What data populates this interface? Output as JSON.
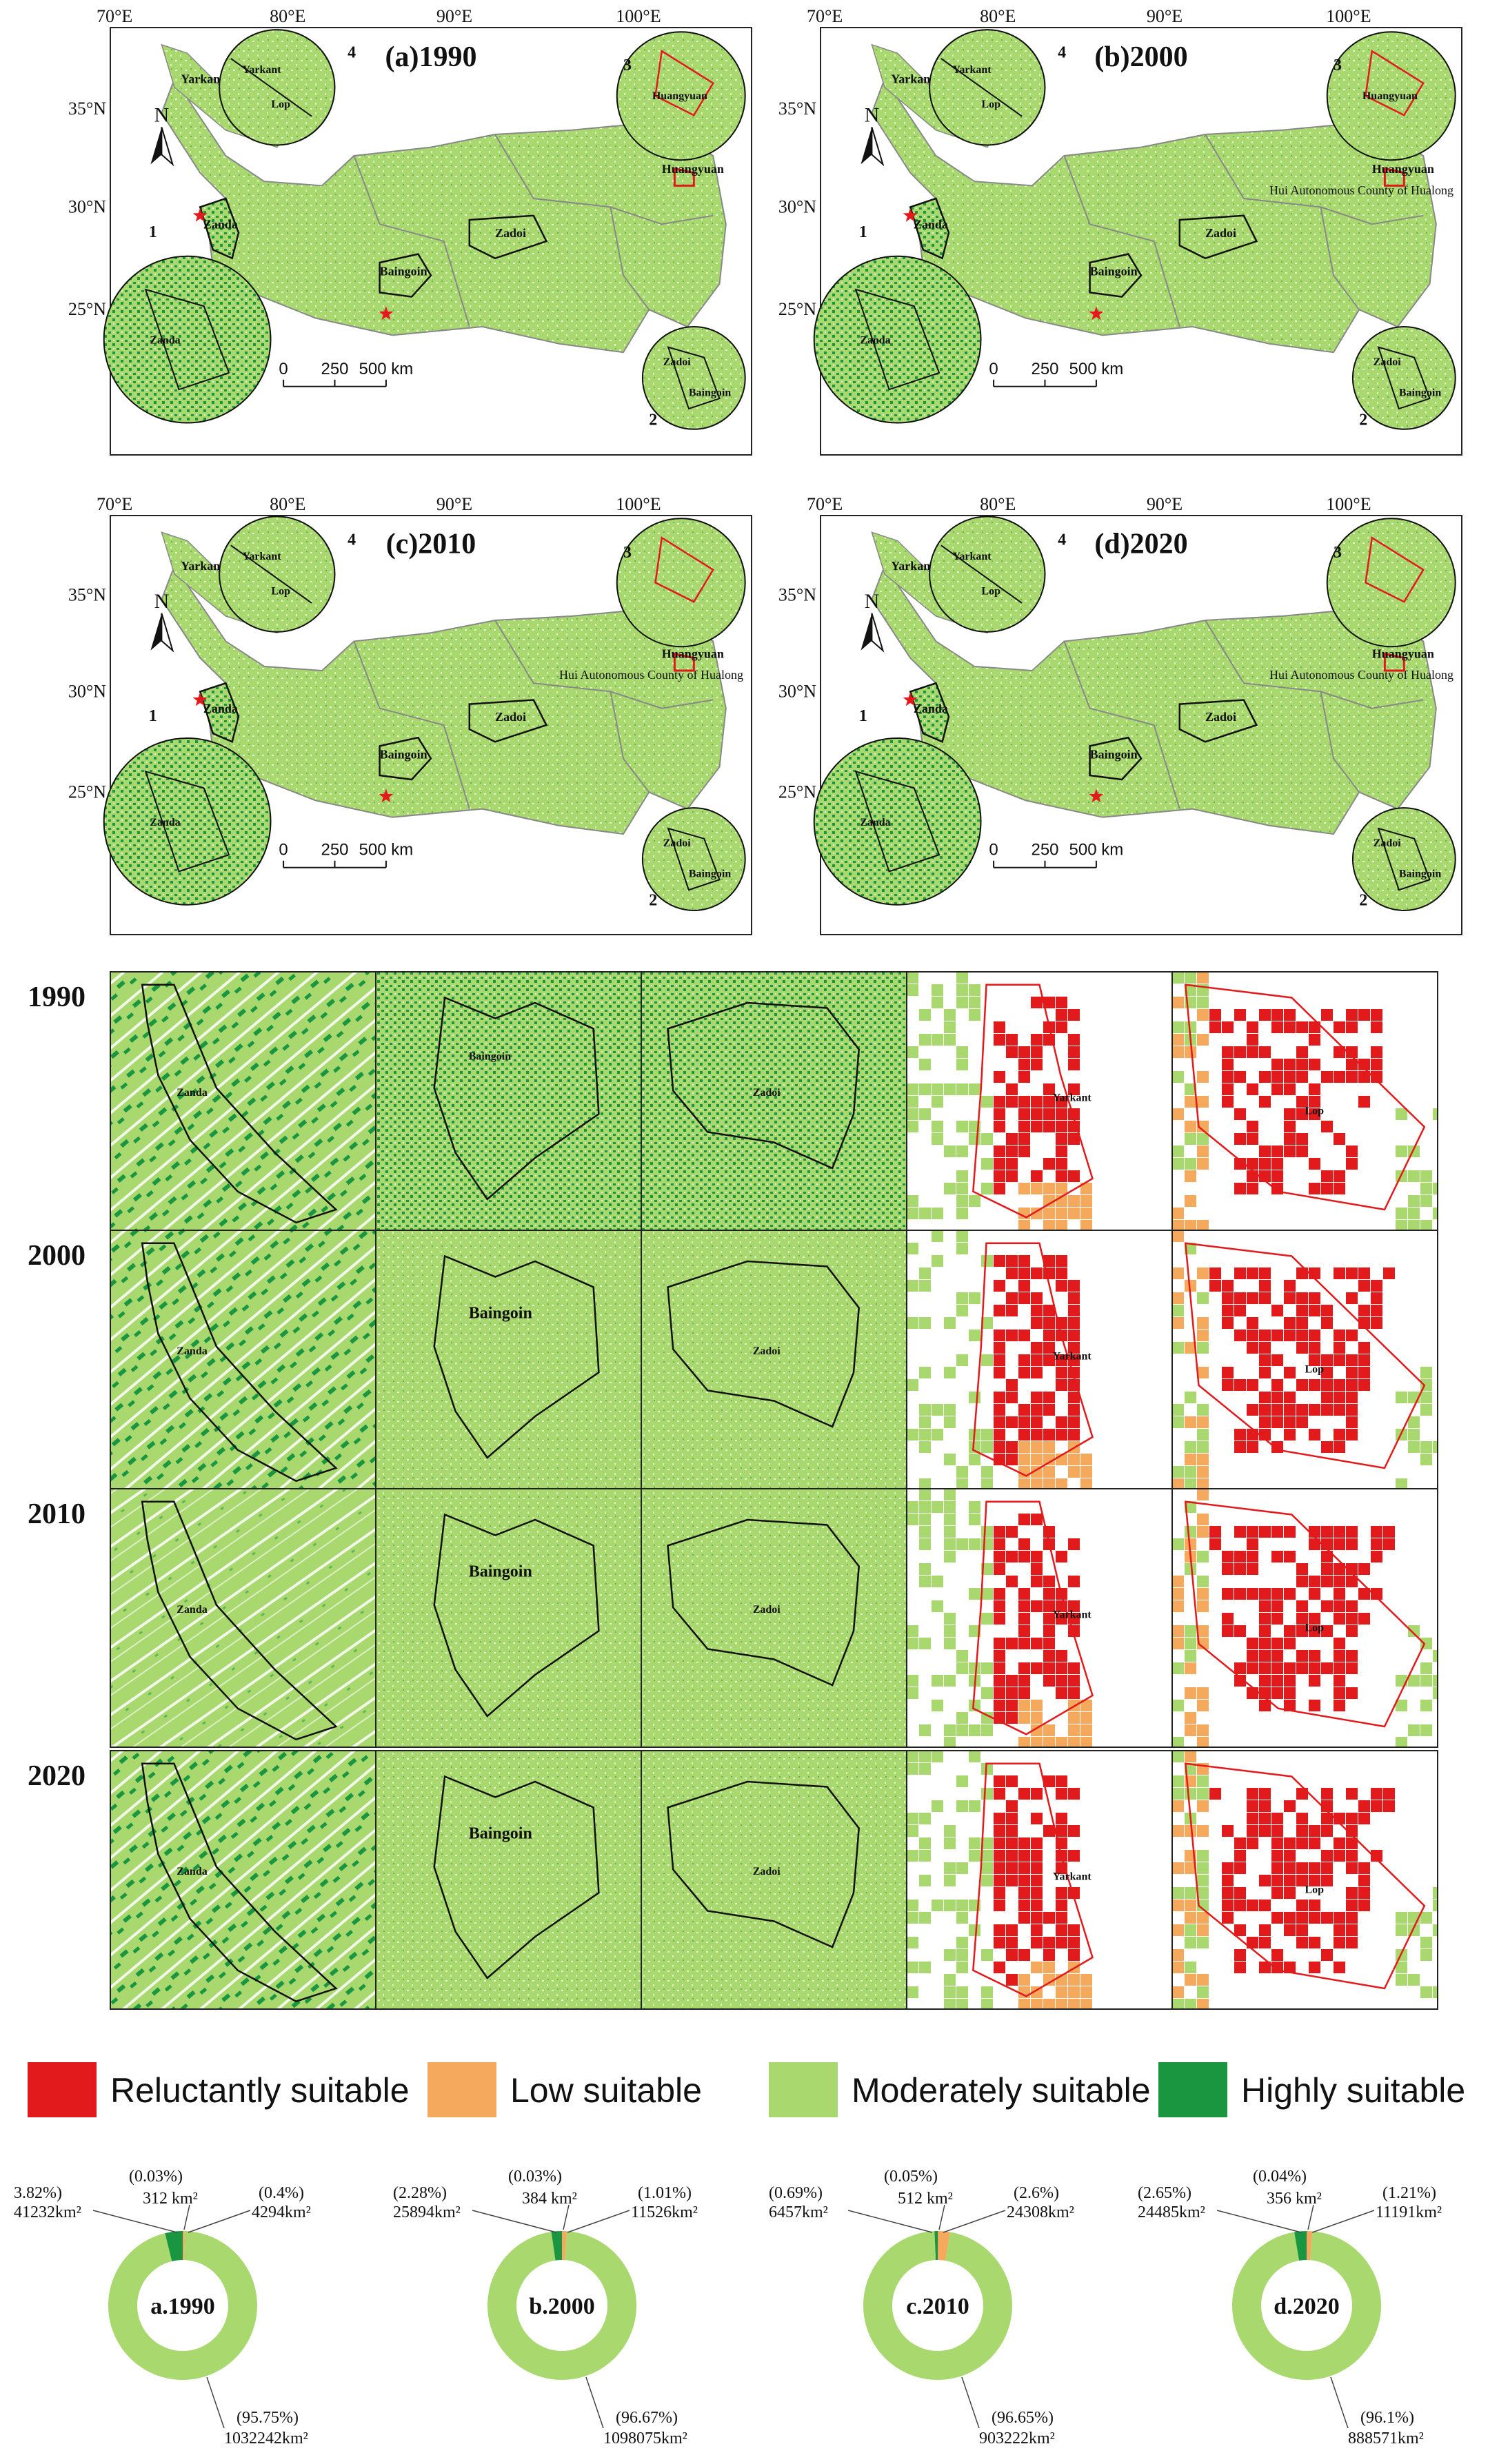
{
  "colors": {
    "reluctant": "#e31a1c",
    "low": "#f4a95c",
    "moderate": "#a8d86e",
    "high": "#1a9641",
    "outline": "#111111",
    "boundary": "#e31a1c",
    "province": "#888888"
  },
  "maps": [
    {
      "label": "(a)1990",
      "xticks": [
        "70°E",
        "80°E",
        "90°E",
        "100°E"
      ],
      "yticks": [
        "35°N",
        "30°N",
        "25°N"
      ],
      "north": "N",
      "scale_labels": [
        "0",
        "250",
        "500 km"
      ],
      "places": [
        "Yarkant",
        "Lop",
        "Huangyuan",
        "Zanda",
        "Baingoin",
        "Zadoi"
      ],
      "inset_nums": [
        "1",
        "2",
        "3",
        "4"
      ],
      "inset_places": {
        "i1": "Zanda",
        "i2": [
          "Zadoi",
          "Baingoin"
        ],
        "i3": "Huangyuan",
        "i4": [
          "Yarkant",
          "Lop"
        ]
      }
    },
    {
      "label": "(b)2000",
      "xticks": [
        "70°E",
        "80°E",
        "90°E",
        "100°E"
      ],
      "yticks": [
        "35°N",
        "30°N",
        "25°N"
      ],
      "north": "N",
      "scale_labels": [
        "0",
        "250",
        "500 km"
      ],
      "places": [
        "Yarkant",
        "Lop",
        "Huangyuan",
        "Hui Autonomous County of Hualong",
        "Zanda",
        "Baingoin",
        "Zadoi"
      ],
      "inset_nums": [
        "1",
        "2",
        "3",
        "4"
      ],
      "inset_places": {
        "i1": "Zanda",
        "i2": [
          "Zadoi",
          "Baingoin"
        ],
        "i3": "Huangyuan",
        "i4": [
          "Yarkant",
          "Lop"
        ]
      }
    },
    {
      "label": "(c)2010",
      "xticks": [
        "70°E",
        "80°E",
        "90°E",
        "100°E"
      ],
      "yticks": [
        "35°N",
        "30°N",
        "25°N"
      ],
      "north": "N",
      "scale_labels": [
        "0",
        "250",
        "500 km"
      ],
      "places": [
        "Yarkant",
        "Lop",
        "Huangyuan",
        "Hui Autonomous County of Hualong",
        "Zanda",
        "Baingoin",
        "Zadoi"
      ],
      "inset_nums": [
        "1",
        "2",
        "3",
        "4"
      ],
      "inset_places": {
        "i1": "Zanda",
        "i2": [
          "Zadoi",
          "Baingoin"
        ],
        "i3": "",
        "i4": [
          "Yarkant",
          "Lop"
        ]
      }
    },
    {
      "label": "(d)2020",
      "xticks": [
        "70°E",
        "80°E",
        "90°E",
        "100°E"
      ],
      "yticks": [
        "35°N",
        "30°N",
        "25°N"
      ],
      "north": "N",
      "scale_labels": [
        "0",
        "250",
        "500 km"
      ],
      "places": [
        "Yarkant",
        "Lop",
        "Huangyuan",
        "Hui Autonomous County of Hualong",
        "Zanda",
        "Baingoin",
        "Zadoi"
      ],
      "inset_nums": [
        "1",
        "2",
        "3",
        "4"
      ],
      "inset_places": {
        "i1": "Zanda",
        "i2": [
          "Zadoi",
          "Baingoin"
        ],
        "i3": "",
        "i4": [
          "Yarkant",
          "Lop"
        ]
      }
    }
  ],
  "grid": {
    "years": [
      "1990",
      "2000",
      "2010",
      "2020"
    ],
    "columns": [
      "Zanda",
      "Baingoin",
      "Zadoi",
      "Yarkant",
      "Lop"
    ]
  },
  "legend": [
    {
      "label": "Reluctantly suitable",
      "color": "#e31a1c"
    },
    {
      "label": "Low suitable",
      "color": "#f4a95c"
    },
    {
      "label": "Moderately suitable",
      "color": "#a8d86e"
    },
    {
      "label": "Highly suitable",
      "color": "#1a9641"
    }
  ],
  "chart_data": [
    {
      "type": "pie",
      "title": "a.1990",
      "categories": [
        "Reluctantly suitable",
        "Low suitable",
        "Moderately suitable",
        "Highly suitable"
      ],
      "values": [
        312,
        4294,
        1032242,
        41232
      ],
      "percent_labels": [
        "(0.03%)",
        "(0.4%)",
        "(95.75%)",
        "3.82%)"
      ],
      "area_labels": [
        "312 km²",
        "4294km²",
        "1032242km²",
        "41232km²"
      ]
    },
    {
      "type": "pie",
      "title": "b.2000",
      "categories": [
        "Reluctantly suitable",
        "Low suitable",
        "Moderately suitable",
        "Highly suitable"
      ],
      "values": [
        384,
        11526,
        1098075,
        25894
      ],
      "percent_labels": [
        "(0.03%)",
        "(1.01%)",
        "(96.67%)",
        "(2.28%)"
      ],
      "area_labels": [
        "384 km²",
        "11526km²",
        "1098075km²",
        "25894km²"
      ]
    },
    {
      "type": "pie",
      "title": "c.2010",
      "categories": [
        "Reluctantly suitable",
        "Low suitable",
        "Moderately suitable",
        "Highly suitable"
      ],
      "values": [
        512,
        24308,
        903222,
        6457
      ],
      "percent_labels": [
        "(0.05%)",
        "(2.6%)",
        "(96.65%)",
        "(0.69%)"
      ],
      "area_labels": [
        "512 km²",
        "24308km²",
        "903222km²",
        "6457km²"
      ]
    },
    {
      "type": "pie",
      "title": "d.2020",
      "categories": [
        "Reluctantly suitable",
        "Low suitable",
        "Moderately suitable",
        "Highly suitable"
      ],
      "values": [
        356,
        11191,
        888571,
        24485
      ],
      "percent_labels": [
        "(0.04%)",
        "(1.21%)",
        "(96.1%)",
        "(2.65%)"
      ],
      "area_labels": [
        "356 km²",
        "11191km²",
        "888571km²",
        "24485km²"
      ]
    }
  ]
}
